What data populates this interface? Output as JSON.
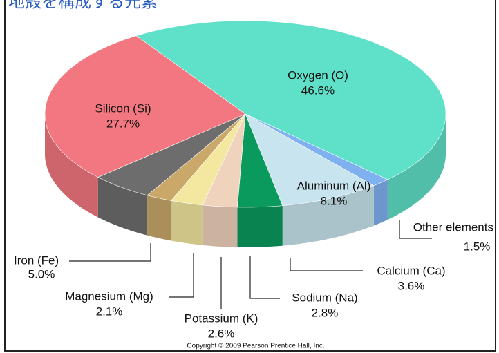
{
  "chart_data": {
    "type": "pie",
    "title": "地殻を構成する元素",
    "categories": [
      "Oxygen (O)",
      "Other elements",
      "Aluminum (Al)",
      "Calcium (Ca)",
      "Sodium (Na)",
      "Potassium (K)",
      "Magnesium (Mg)",
      "Iron (Fe)",
      "Silicon (Si)"
    ],
    "values": [
      46.6,
      1.5,
      8.1,
      3.6,
      2.8,
      2.6,
      2.1,
      5.0,
      27.7
    ],
    "value_labels": [
      "46.6%",
      "1.5%",
      "8.1%",
      "3.6%",
      "2.8%",
      "2.6%",
      "2.1%",
      "5.0%",
      "27.7%"
    ],
    "colors": [
      "#5fe0c8",
      "#7fb0f0",
      "#c8e4ee",
      "#0a9a5e",
      "#f0d3bd",
      "#f4e7a0",
      "#c9a86a",
      "#6d6d6d",
      "#f27780"
    ],
    "annotation": "Copyright © 2009 Pearson Prentice Hall, Inc."
  }
}
